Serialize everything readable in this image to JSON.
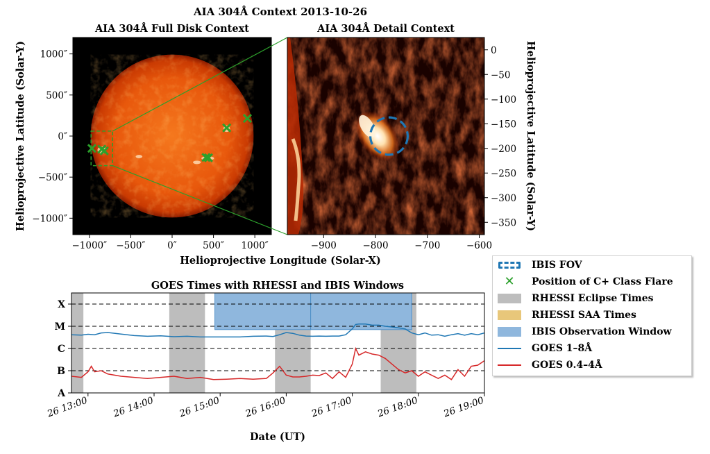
{
  "figure": {
    "suptitle": "AIA 304Å Context 2013-10-26"
  },
  "panels": {
    "full_disk": {
      "title": "AIA 304Å Full Disk Context",
      "ylabel": "Helioprojective Latitude (Solar-Y)",
      "xticks": [
        "−1000″",
        "−500″",
        "0″",
        "500″",
        "1000″"
      ],
      "yticks": [
        "1000″",
        "500″",
        "0″",
        "−500″",
        "−1000″"
      ]
    },
    "detail": {
      "title": "AIA 304Å Detail Context",
      "ylabel": "Helioprojective Latitude (Solar-Y)",
      "xticks": [
        "−900",
        "−800",
        "−700",
        "−600"
      ],
      "yticks": [
        "0",
        "−50",
        "−100",
        "−150",
        "−200",
        "−250",
        "−300",
        "−350"
      ]
    },
    "shared_xlabel": "Helioprojective Longitude (Solar-X)"
  },
  "legend": {
    "items": [
      {
        "label": "IBIS FOV",
        "kind": "dashed-circle",
        "color": "#1f77b4"
      },
      {
        "label": "Position of C+ Class Flare",
        "kind": "x-marker",
        "color": "#2ca02c"
      },
      {
        "label": "RHESSI Eclipse Times",
        "kind": "patch",
        "color": "#bdbdbd"
      },
      {
        "label": "RHESSI SAA Times",
        "kind": "patch",
        "color": "#e8c77a"
      },
      {
        "label": "IBIS Observation Window",
        "kind": "patch",
        "color": "#8fb7dd"
      },
      {
        "label": "GOES 1–8Å",
        "kind": "line",
        "color": "#1f77b4"
      },
      {
        "label": "GOES 0.4–4Å",
        "kind": "line",
        "color": "#d62728"
      }
    ]
  },
  "chart_data": [
    {
      "type": "scatter",
      "panel": "AIA 304Å Full Disk Context",
      "xlim": [
        -1200,
        1200
      ],
      "ylim": [
        -1200,
        1200
      ],
      "xlabel": "Helioprojective Longitude (Solar-X)",
      "ylabel": "Helioprojective Latitude (Solar-Y)",
      "flare_positions": [
        {
          "x": -970,
          "y": -150
        },
        {
          "x": -850,
          "y": -160
        },
        {
          "x": -820,
          "y": -180
        },
        {
          "x": 410,
          "y": -260
        },
        {
          "x": 440,
          "y": -265
        },
        {
          "x": 660,
          "y": 100
        },
        {
          "x": 910,
          "y": 215
        }
      ],
      "context_box": {
        "x": [
          -980,
          -720
        ],
        "y": [
          -360,
          60
        ]
      },
      "solar_radius": 985
    },
    {
      "type": "scatter",
      "panel": "AIA 304Å Detail Context",
      "xlim": [
        -970,
        -590
      ],
      "ylim": [
        -375,
        25
      ],
      "ylabel": "Helioprojective Latitude (Solar-Y)",
      "ibis_fov": {
        "x": -774,
        "y": -175,
        "r": 36
      }
    },
    {
      "type": "line",
      "title": "GOES Times with RHESSI and IBIS Windows",
      "xlabel": "Date (UT)",
      "xlim": [
        12.75,
        19.0
      ],
      "x_ticks": [
        13,
        14,
        15,
        16,
        17,
        18,
        19
      ],
      "x_tick_labels": [
        "26 13:00",
        "26 14:00",
        "26 15:00",
        "26 16:00",
        "26 17:00",
        "26 18:00",
        "26 19:00"
      ],
      "y_scale": "log-class",
      "y_levels": [
        "A",
        "B",
        "C",
        "M",
        "X"
      ],
      "y_level_values": [
        1,
        2,
        3,
        4,
        5
      ],
      "ylim": [
        1,
        5.5
      ],
      "grid": "dashed lines at each GOES class",
      "eclipse_windows": [
        [
          12.75,
          12.93
        ],
        [
          14.23,
          14.77
        ],
        [
          15.83,
          16.37
        ],
        [
          17.43,
          17.97
        ]
      ],
      "saa_windows": [],
      "ibis_windows": [
        [
          14.92,
          16.37
        ],
        [
          16.37,
          17.9
        ]
      ],
      "series": [
        {
          "name": "GOES 1–8Å",
          "x": [
            12.75,
            12.9,
            13.0,
            13.1,
            13.2,
            13.3,
            13.5,
            13.7,
            13.9,
            14.1,
            14.3,
            14.5,
            14.7,
            14.9,
            15.1,
            15.3,
            15.5,
            15.7,
            15.8,
            15.9,
            16.0,
            16.1,
            16.2,
            16.3,
            16.4,
            16.5,
            16.6,
            16.7,
            16.8,
            16.9,
            17.0,
            17.05,
            17.1,
            17.2,
            17.3,
            17.4,
            17.5,
            17.6,
            17.7,
            17.8,
            17.9,
            18.0,
            18.1,
            18.2,
            18.3,
            18.4,
            18.5,
            18.6,
            18.7,
            18.8,
            18.9,
            19.0
          ],
          "values": [
            3.62,
            3.6,
            3.64,
            3.62,
            3.7,
            3.72,
            3.65,
            3.58,
            3.55,
            3.57,
            3.53,
            3.55,
            3.52,
            3.52,
            3.52,
            3.52,
            3.55,
            3.56,
            3.54,
            3.62,
            3.72,
            3.68,
            3.6,
            3.56,
            3.55,
            3.56,
            3.55,
            3.56,
            3.56,
            3.62,
            3.88,
            4.08,
            4.1,
            4.1,
            4.05,
            4.05,
            4.0,
            3.97,
            3.93,
            3.88,
            3.7,
            3.62,
            3.7,
            3.6,
            3.62,
            3.55,
            3.62,
            3.67,
            3.6,
            3.67,
            3.62,
            3.7
          ]
        },
        {
          "name": "GOES 0.4–4Å",
          "x": [
            12.75,
            12.9,
            13.0,
            13.05,
            13.1,
            13.2,
            13.3,
            13.5,
            13.7,
            13.9,
            14.1,
            14.3,
            14.5,
            14.7,
            14.9,
            15.1,
            15.3,
            15.5,
            15.7,
            15.8,
            15.9,
            16.0,
            16.1,
            16.2,
            16.3,
            16.4,
            16.5,
            16.6,
            16.7,
            16.8,
            16.9,
            17.0,
            17.05,
            17.1,
            17.2,
            17.3,
            17.4,
            17.5,
            17.6,
            17.7,
            17.8,
            17.9,
            18.0,
            18.1,
            18.2,
            18.3,
            18.4,
            18.5,
            18.6,
            18.7,
            18.8,
            18.9,
            19.0
          ],
          "values": [
            1.75,
            1.7,
            1.95,
            2.2,
            1.95,
            2.0,
            1.85,
            1.75,
            1.7,
            1.65,
            1.7,
            1.75,
            1.65,
            1.7,
            1.6,
            1.62,
            1.65,
            1.62,
            1.65,
            1.9,
            2.2,
            1.8,
            1.72,
            1.72,
            1.75,
            1.8,
            1.78,
            1.9,
            1.65,
            1.95,
            1.7,
            2.3,
            3.0,
            2.7,
            2.85,
            2.75,
            2.7,
            2.55,
            2.3,
            2.05,
            1.9,
            2.0,
            1.75,
            1.95,
            1.8,
            1.65,
            1.8,
            1.6,
            2.05,
            1.75,
            2.2,
            2.25,
            2.45
          ]
        }
      ]
    }
  ]
}
